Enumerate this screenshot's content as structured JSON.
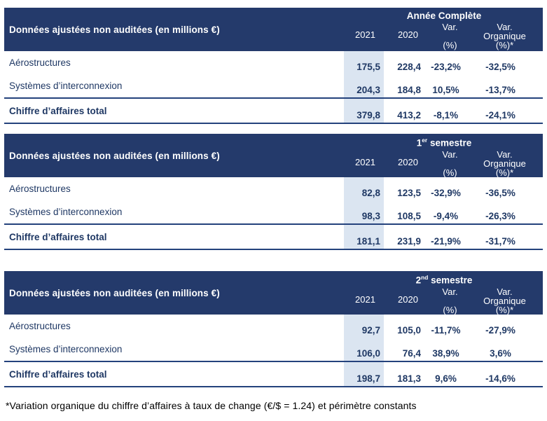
{
  "shared": {
    "row_header_label": "Données ajustées non auditées (en millions €)",
    "columns": {
      "y2021": "2021",
      "y2020": "2020",
      "var_line1": "Var.",
      "var_line2": "(%)",
      "org_line1": "Var.",
      "org_line2": "Organique",
      "org_line3": "(%)*"
    }
  },
  "tables": [
    {
      "period": {
        "base": "Année Complète",
        "sup": "",
        "rest": ""
      },
      "rows": [
        {
          "label": "Aérostructures",
          "v2021": "175,5",
          "v2020": "228,4",
          "var": "-23,2%",
          "org": "-32,5%"
        },
        {
          "label": "Systèmes d’interconnexion",
          "v2021": "204,3",
          "v2020": "184,8",
          "var": "10,5%",
          "org": "-13,7%"
        }
      ],
      "total": {
        "label": "Chiffre d’affaires total",
        "v2021": "379,8",
        "v2020": "413,2",
        "var": "-8,1%",
        "org": "-24,1%"
      }
    },
    {
      "period": {
        "base": "1",
        "sup": "er",
        "rest": " semestre"
      },
      "rows": [
        {
          "label": "Aérostructures",
          "v2021": "82,8",
          "v2020": "123,5",
          "var": "-32,9%",
          "org": "-36,5%"
        },
        {
          "label": "Systèmes d’interconnexion",
          "v2021": "98,3",
          "v2020": "108,5",
          "var": "-9,4%",
          "org": "-26,3%"
        }
      ],
      "total": {
        "label": "Chiffre d’affaires total",
        "v2021": "181,1",
        "v2020": "231,9",
        "var": "-21,9%",
        "org": "-31,7%"
      }
    },
    {
      "period": {
        "base": "2",
        "sup": "nd",
        "rest": " semestre"
      },
      "rows": [
        {
          "label": "Aérostructures",
          "v2021": "92,7",
          "v2020": "105,0",
          "var": "-11,7%",
          "org": "-27,9%"
        },
        {
          "label": "Systèmes d’interconnexion",
          "v2021": "106,0",
          "v2020": "76,4",
          "var": "38,9%",
          "org": "3,6%"
        }
      ],
      "total": {
        "label": "Chiffre d’affaires total",
        "v2021": "198,7",
        "v2020": "181,3",
        "var": "9,6%",
        "org": "-14,6%"
      }
    }
  ],
  "footnote": "*Variation organique du chiffre d’affaires à taux de change (€/$ = 1.24) et périmètre constants",
  "colors": {
    "header_background": "#243A6B",
    "header_text": "#FFFFFF",
    "body_text": "#1F3864",
    "highlight_2021_column": "#DBE5F1",
    "divider_line": "#24427C",
    "footnote_text": "#000000"
  }
}
